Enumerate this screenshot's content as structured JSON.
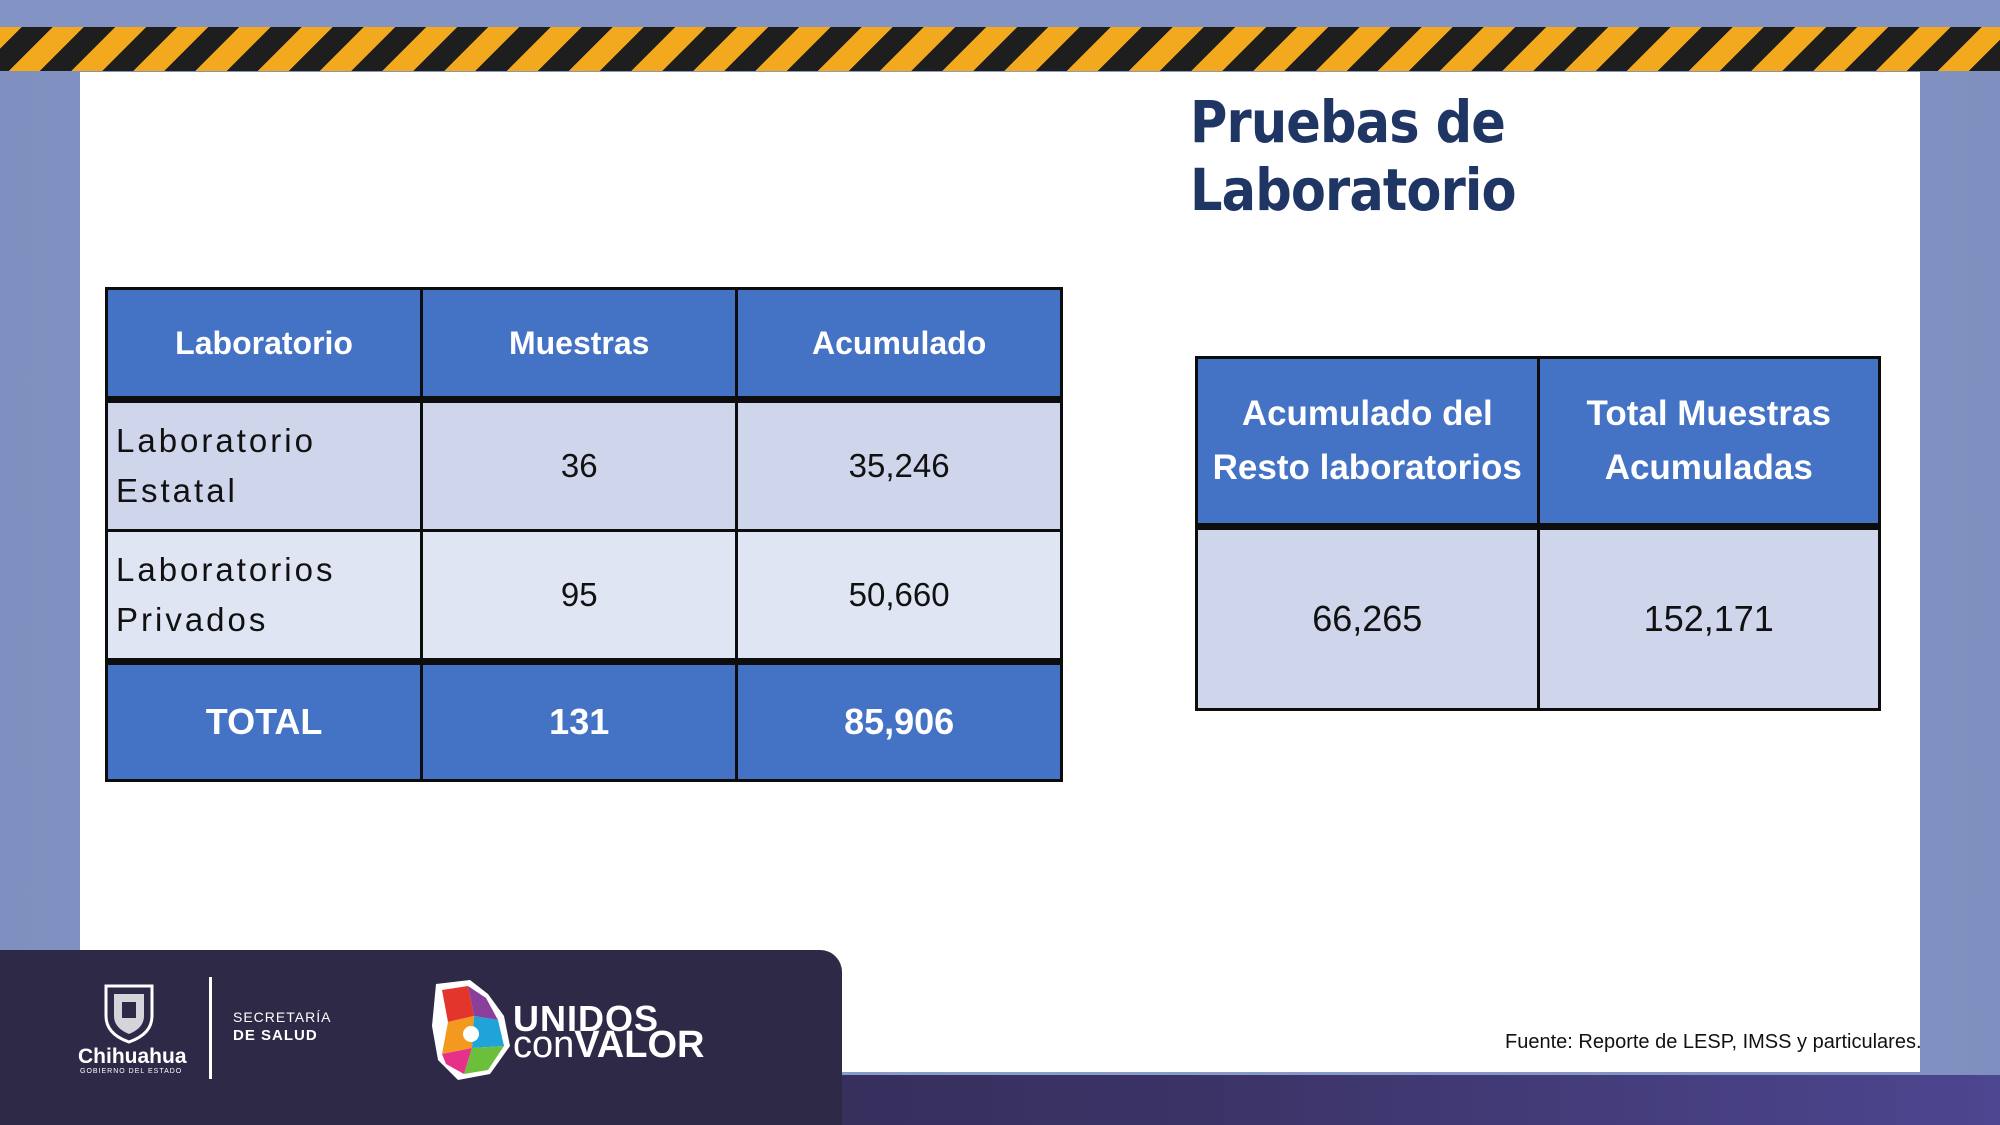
{
  "title": "Pruebas de Laboratorio",
  "table1": {
    "headers": [
      "Laboratorio",
      "Muestras",
      "Acumulado"
    ],
    "rows": [
      {
        "name_line1": "Laboratorio",
        "name_line2": "Estatal",
        "muestras": "36",
        "acumulado": "35,246"
      },
      {
        "name_line1": "Laboratorios",
        "name_line2": "Privados",
        "muestras": "95",
        "acumulado": "50,660"
      }
    ],
    "total": {
      "label": "TOTAL",
      "muestras": "131",
      "acumulado": "85,906"
    }
  },
  "table2": {
    "headers": [
      {
        "line1": "Acumulado del",
        "line2": "Resto laboratorios"
      },
      {
        "line1": "Total Muestras",
        "line2": "Acumuladas"
      }
    ],
    "values": [
      "66,265",
      "152,171"
    ]
  },
  "footer": {
    "source": "Fuente: Reporte de LESP, IMSS y particulares.",
    "gov_name": "Chihuahua",
    "gov_sub": "GOBIERNO DEL ESTADO",
    "secretaria": "SECRETARÍA",
    "salud": "DE SALUD",
    "unidos": "UNIDOS",
    "con": "con",
    "valor": "VALOR"
  },
  "colors": {
    "header_blue": "#4472c4",
    "title_navy": "#1f3564",
    "stripe_yellow": "#f2a91d"
  }
}
